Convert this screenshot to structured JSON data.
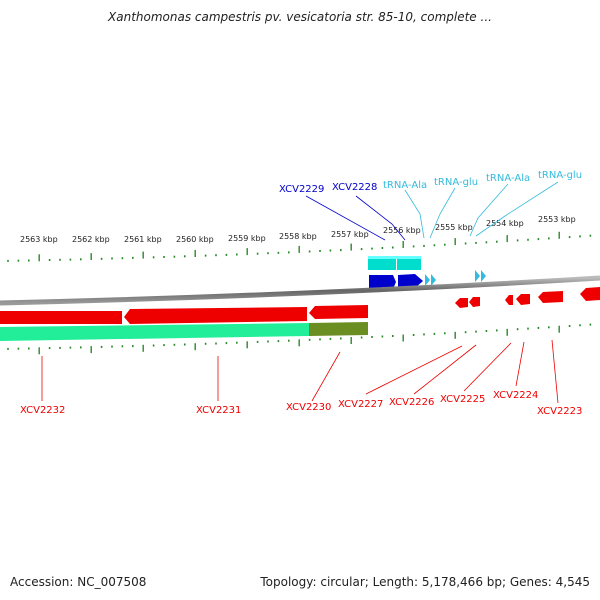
{
  "title": "Xanthomonas campestris pv. vesicatoria str. 85-10, complete ...",
  "footer": {
    "accession": "Accession: NC_007508",
    "topology": "Topology: circular; Length: 5,178,466 bp; Genes: 4,545"
  },
  "ticks": [
    "2563 kbp",
    "2562 kbp",
    "2561 kbp",
    "2560 kbp",
    "2559 kbp",
    "2558 kbp",
    "2557 kbp",
    "2556 kbp",
    "2555 kbp",
    "2554 kbp",
    "2553 kbp"
  ],
  "top_labels": [
    "XCV2229",
    "XCV2228",
    "tRNA-Ala",
    "tRNA-glu",
    "tRNA-Ala",
    "tRNA-glu"
  ],
  "bottom_labels": [
    "XCV2232",
    "XCV2231",
    "XCV2230",
    "XCV2227",
    "XCV2226",
    "XCV2225",
    "XCV2224",
    "XCV2223"
  ],
  "colors": {
    "cds_forward": "#0000cc",
    "cds_reverse": "#ee0000",
    "trna": "#33bbdd",
    "gene_band": "#00ddcc",
    "gc_band": "#22ee99",
    "gc_low": "#6b8e23",
    "tick": "#2a8a2a",
    "backbone": "#777777"
  }
}
